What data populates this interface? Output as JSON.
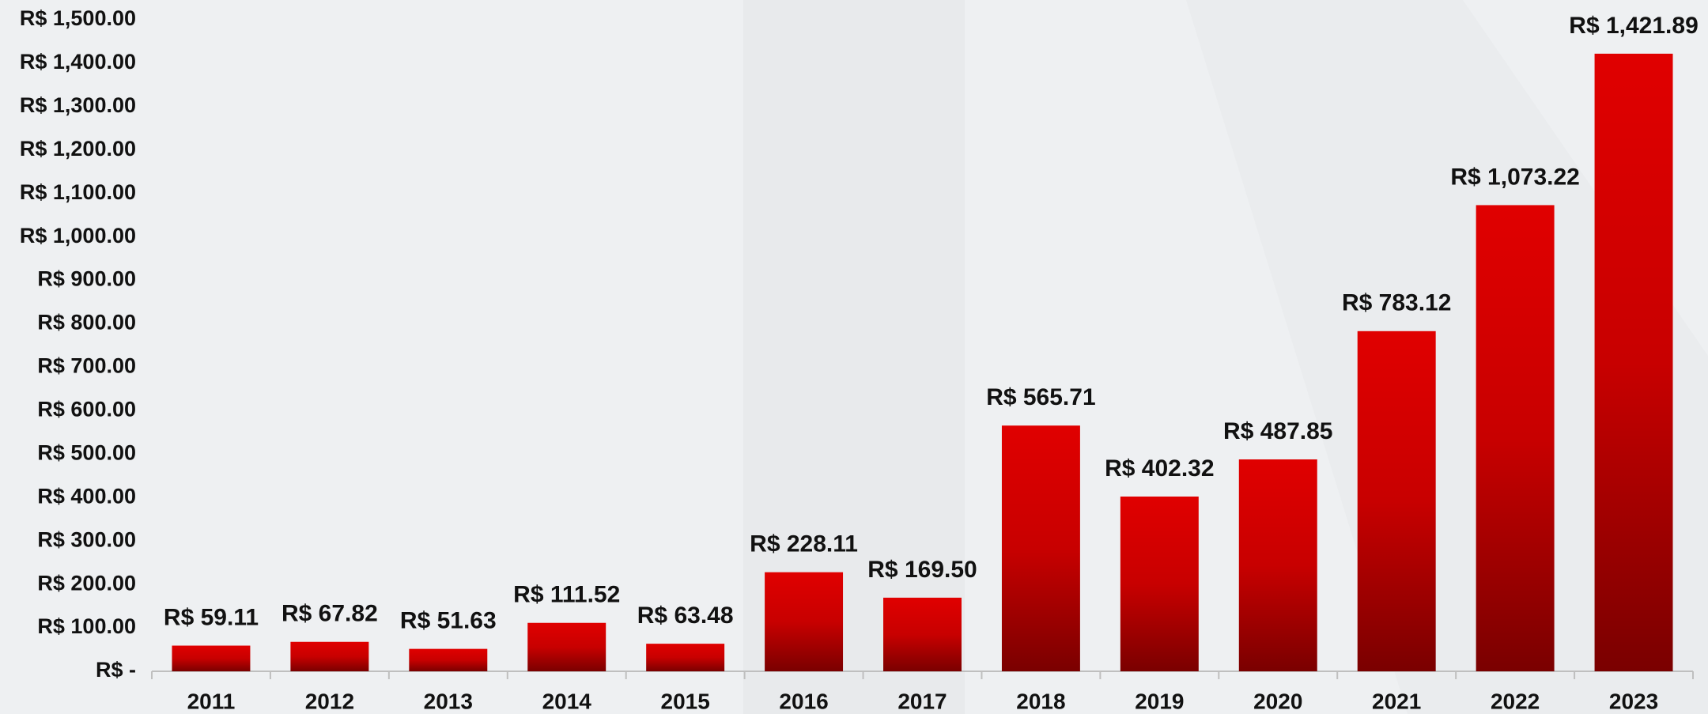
{
  "chart_data": {
    "type": "bar",
    "categories": [
      "2011",
      "2012",
      "2013",
      "2014",
      "2015",
      "2016",
      "2017",
      "2018",
      "2019",
      "2020",
      "2021",
      "2022",
      "2023"
    ],
    "values": [
      59.11,
      67.82,
      51.63,
      111.52,
      63.48,
      228.11,
      169.5,
      565.71,
      402.32,
      487.85,
      783.12,
      1073.22,
      1421.89
    ],
    "value_labels": [
      "R$ 59.11",
      "R$ 67.82",
      "R$ 51.63",
      "R$ 111.52",
      "R$ 63.48",
      "R$ 228.11",
      "R$ 169.50",
      "R$ 565.71",
      "R$ 402.32",
      "R$ 487.85",
      "R$ 783.12",
      "R$ 1,073.22",
      "R$ 1,421.89"
    ],
    "color": "#e00000",
    "ylim": [
      0,
      1500
    ],
    "yticks": [
      {
        "value": 0,
        "label": "R$ -"
      },
      {
        "value": 100,
        "label": "R$ 100.00"
      },
      {
        "value": 200,
        "label": "R$ 200.00"
      },
      {
        "value": 300,
        "label": "R$ 300.00"
      },
      {
        "value": 400,
        "label": "R$ 400.00"
      },
      {
        "value": 500,
        "label": "R$ 500.00"
      },
      {
        "value": 600,
        "label": "R$ 600.00"
      },
      {
        "value": 700,
        "label": "R$ 700.00"
      },
      {
        "value": 800,
        "label": "R$ 800.00"
      },
      {
        "value": 900,
        "label": "R$ 900.00"
      },
      {
        "value": 1000,
        "label": "R$ 1,000.00"
      },
      {
        "value": 1100,
        "label": "R$ 1,100.00"
      },
      {
        "value": 1200,
        "label": "R$ 1,200.00"
      },
      {
        "value": 1300,
        "label": "R$ 1,300.00"
      },
      {
        "value": 1400,
        "label": "R$ 1,400.00"
      },
      {
        "value": 1500,
        "label": "R$ 1,500.00"
      }
    ],
    "grid": false
  }
}
